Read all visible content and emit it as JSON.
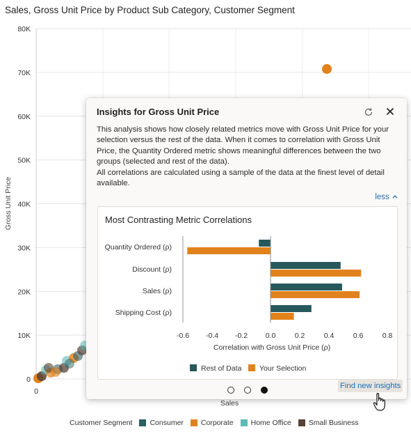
{
  "background_chart": {
    "title": "Sales, Gross Unit Price by Product Sub Category, Customer Segment",
    "y_axis_title": "Gross Unit Price",
    "x_axis_title": "Sales",
    "y_tick_labels": [
      "80K",
      "70K",
      "60K",
      "50K",
      "40K",
      "30K",
      "20K",
      "10K",
      "0"
    ],
    "x_tick_labels": [
      "0"
    ],
    "legend_title": "Customer Segment",
    "legend": [
      {
        "label": "Consumer",
        "color": "#2d5f63"
      },
      {
        "label": "Corporate",
        "color": "#e1821c"
      },
      {
        "label": "Home Office",
        "color": "#5fbbb5"
      },
      {
        "label": "Small Business",
        "color": "#574236"
      }
    ]
  },
  "insights_panel": {
    "title": "Insights for Gross Unit Price",
    "description_1": "This analysis shows how closely related metrics move with Gross Unit Price for your selection versus the rest of the data. When it comes to correlation with Gross Unit Price, the Quantity Ordered metric shows meaningful differences between the two groups (selected and rest of the data).",
    "description_2": "All correlations are calculated using a sample of the data at the finest level of detail available.",
    "less_label": "less",
    "find_new_label": "Find new insights",
    "page_count": 3,
    "active_page": 3
  },
  "chart_data": {
    "type": "bar",
    "orientation": "horizontal",
    "title": "Most Contrasting Metric Correlations",
    "categories": [
      "Quantity Ordered (ρ)",
      "Discount (ρ)",
      "Sales (ρ)",
      "Shipping Cost (ρ)"
    ],
    "series": [
      {
        "name": "Rest of Data",
        "color": "#27585c",
        "values": [
          -0.08,
          0.48,
          0.49,
          0.28
        ]
      },
      {
        "name": "Your Selection",
        "color": "#e1821c",
        "values": [
          -0.57,
          0.62,
          0.61,
          0.16
        ]
      }
    ],
    "xlabel": "Correlation with Gross Unit Price (ρ)",
    "xlim": [
      -0.6,
      0.8
    ],
    "xticks": [
      "-0.6",
      "-0.4",
      "-0.2",
      "0.0",
      "0.2",
      "0.4",
      "0.6",
      "0.8"
    ],
    "legend_position": "bottom",
    "grid": false
  }
}
